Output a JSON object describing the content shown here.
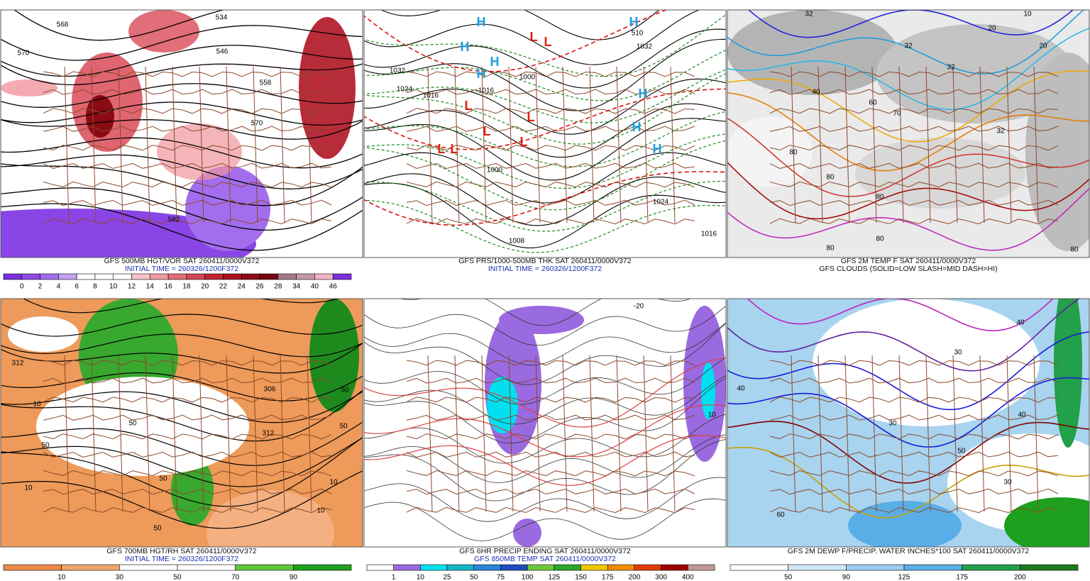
{
  "panels": [
    {
      "caption": "GFS 500MB HGT/VOR SAT 260411/0000V372",
      "subcaption": "INITIAL TIME = 260326/1200F372",
      "colorbar": [
        0,
        2,
        4,
        6,
        8,
        10,
        12,
        14,
        16,
        18,
        20,
        22,
        24,
        26,
        28,
        34,
        40,
        46
      ],
      "labels": [
        "568",
        "570",
        "534",
        "546",
        "558",
        "570",
        "582"
      ]
    },
    {
      "caption": "GFS PRS/1000-500MB THK SAT 260411/0000V372",
      "subcaption": "INITIAL TIME = 260326/1200F372",
      "labels": [
        "1032",
        "1024",
        "1016",
        "1016",
        "1000",
        "1008",
        "1024",
        "1016",
        "1032",
        "1000",
        "510",
        "H",
        "H",
        "H",
        "H",
        "H",
        "H",
        "H",
        "H",
        "L",
        "L",
        "L",
        "L",
        "L",
        "L",
        "L",
        "L"
      ]
    },
    {
      "caption": "GFS 2M TEMP F SAT 260411/0000V372",
      "subcaption": "GFS CLOUDS (SOLID=LOW SLASH=MID DASH=HI)",
      "labels": [
        "32",
        "32",
        "32",
        "20",
        "10",
        "20",
        "40",
        "60",
        "70",
        "80",
        "80",
        "80",
        "80",
        "80",
        "80",
        "32"
      ]
    },
    {
      "caption": "GFS 700MB HGT/RH SAT 260411/0000V372",
      "subcaption": "INITIAL TIME = 260326/1200F372",
      "colorbar": [
        10,
        30,
        50,
        70,
        90
      ],
      "labels": [
        "312",
        "10",
        "10",
        "50",
        "50",
        "50",
        "50",
        "50",
        "50",
        "312",
        "306",
        "10",
        "10"
      ]
    },
    {
      "caption": "GFS 6HR PRECIP ENDING SAT 260411/0000V372",
      "subcaption": "GFS 850MB TEMP SAT 260411/0000V372",
      "colorbar": [
        1,
        10,
        25,
        50,
        75,
        100,
        125,
        150,
        175,
        200,
        300,
        400
      ],
      "labels": [
        "-20",
        "10"
      ]
    },
    {
      "caption": "GFS 2M DEWP F/PRECIP. WATER INCHES*100 SAT 260411/0000V372",
      "colorbar": [
        50,
        90,
        125,
        175,
        200
      ],
      "labels": [
        "40",
        "30",
        "30",
        "40",
        "30",
        "50",
        "60",
        "40"
      ]
    }
  ]
}
